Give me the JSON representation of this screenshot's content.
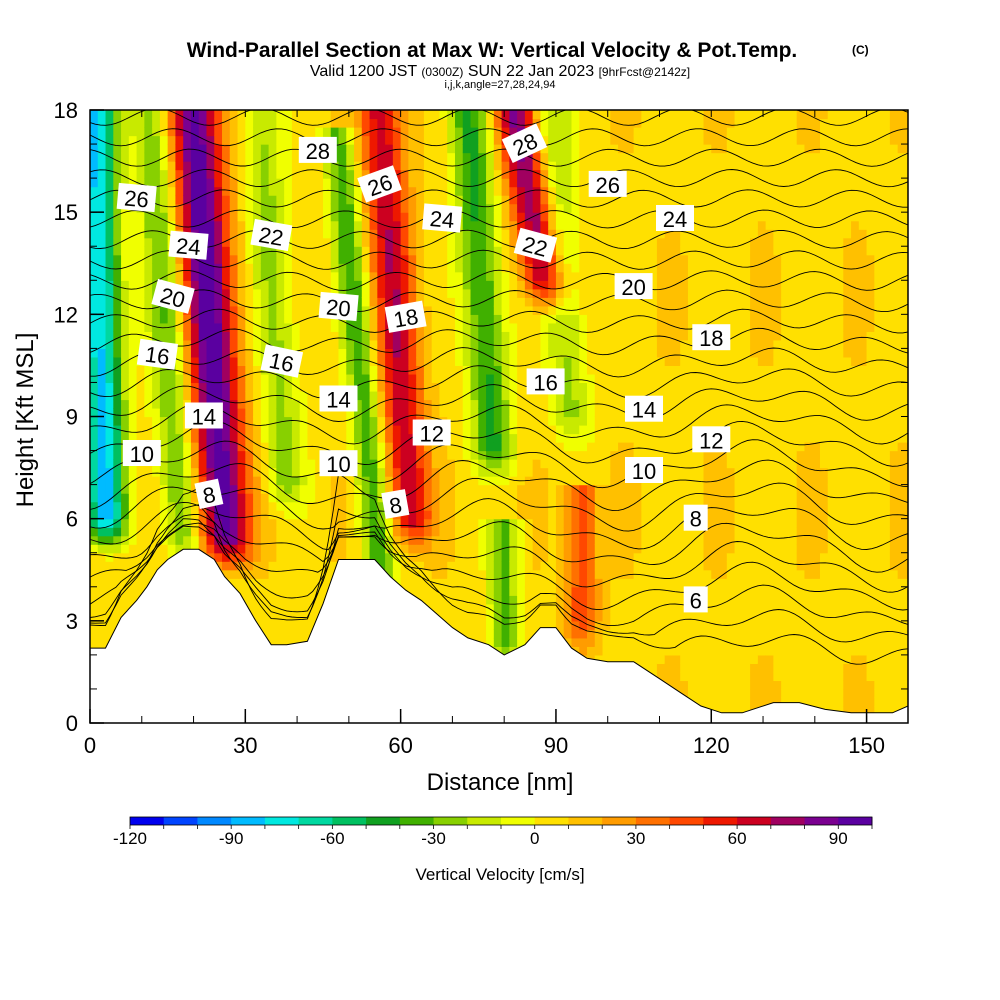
{
  "title": {
    "main": "Wind-Parallel Section at Max W: Vertical Velocity & Pot.Temp.",
    "copyright": "(C)",
    "valid_prefix": "Valid 1200 JST",
    "valid_zulu": "(0300Z)",
    "valid_date": "SUN 22 Jan 2023",
    "fcst": "[9hrFcst@2142z]",
    "params": "i,j,k,angle=27,28,24,94"
  },
  "chart_data": {
    "type": "heatmap",
    "xlabel": "Distance [nm]",
    "ylabel": "Height [Kft MSL]",
    "xlim": [
      0,
      158
    ],
    "ylim": [
      0,
      18
    ],
    "x_ticks": [
      "0",
      "30",
      "60",
      "90",
      "120",
      "150"
    ],
    "x_tick_values": [
      0,
      30,
      60,
      90,
      120,
      150
    ],
    "y_ticks": [
      "0",
      "3",
      "6",
      "9",
      "12",
      "15",
      "18"
    ],
    "y_tick_values": [
      0,
      3,
      6,
      9,
      12,
      15,
      18
    ],
    "terrain_profile": {
      "x": [
        0,
        3,
        6,
        9,
        11,
        13,
        15,
        18,
        21,
        24,
        26,
        29,
        32,
        35,
        38,
        42,
        45,
        48,
        51,
        55,
        58,
        61,
        64,
        67,
        70,
        73,
        77,
        80,
        84,
        87,
        90,
        93,
        96,
        100,
        105,
        110,
        114,
        118,
        122,
        126,
        132,
        137,
        142,
        147,
        152,
        155,
        158
      ],
      "height": [
        2.2,
        2.2,
        3.1,
        3.6,
        4.0,
        4.5,
        4.8,
        5.1,
        5.1,
        4.8,
        4.3,
        3.8,
        3.0,
        2.3,
        2.3,
        2.4,
        3.5,
        4.8,
        4.8,
        4.8,
        4.3,
        3.9,
        3.6,
        3.2,
        2.8,
        2.5,
        2.3,
        2.0,
        2.3,
        2.8,
        2.8,
        2.2,
        1.9,
        1.8,
        1.8,
        1.3,
        0.9,
        0.5,
        0.3,
        0.3,
        0.6,
        0.6,
        0.4,
        0.3,
        0.3,
        0.3,
        0.5
      ]
    },
    "vertical_velocity_features": [
      {
        "x": 3,
        "kind": "downdraft",
        "w_cms": -90,
        "bottom_kft": 6.0,
        "top_kft": 18,
        "tilt_nm": -2,
        "width_nm": 4
      },
      {
        "x": 18,
        "kind": "downdraft",
        "w_cms": -40,
        "bottom_kft": 5.5,
        "top_kft": 18,
        "tilt_nm": -6,
        "width_nm": 4
      },
      {
        "x": 26,
        "kind": "updraft",
        "w_cms": 90,
        "bottom_kft": 5.5,
        "top_kft": 18,
        "tilt_nm": -6,
        "width_nm": 5
      },
      {
        "x": 38,
        "kind": "downdraft",
        "w_cms": -30,
        "bottom_kft": 7.0,
        "top_kft": 18,
        "tilt_nm": -5,
        "width_nm": 4
      },
      {
        "x": 56,
        "kind": "downdraft",
        "w_cms": -45,
        "bottom_kft": 4.6,
        "top_kft": 17,
        "tilt_nm": -8,
        "width_nm": 3
      },
      {
        "x": 62,
        "kind": "updraft",
        "w_cms": 60,
        "bottom_kft": 6.0,
        "top_kft": 18,
        "tilt_nm": -6,
        "width_nm": 4
      },
      {
        "x": 78,
        "kind": "downdraft",
        "w_cms": -50,
        "bottom_kft": 8.0,
        "top_kft": 18,
        "tilt_nm": -5,
        "width_nm": 4
      },
      {
        "x": 88,
        "kind": "updraft",
        "w_cms": 75,
        "bottom_kft": 13.0,
        "top_kft": 18,
        "tilt_nm": -6,
        "width_nm": 4
      },
      {
        "x": 93,
        "kind": "downdraft",
        "w_cms": -30,
        "bottom_kft": 9.0,
        "top_kft": 18,
        "tilt_nm": -4,
        "width_nm": 4
      },
      {
        "x": 95,
        "kind": "updraft",
        "w_cms": 40,
        "bottom_kft": 3.0,
        "top_kft": 6.5,
        "tilt_nm": 0,
        "width_nm": 3
      },
      {
        "x": 80,
        "kind": "downdraft",
        "w_cms": -40,
        "bottom_kft": 2.3,
        "top_kft": 5.5,
        "tilt_nm": 0,
        "width_nm": 3
      }
    ],
    "theta_contours": {
      "levels": [
        6,
        8,
        10,
        12,
        14,
        16,
        18,
        20,
        22,
        24,
        26,
        28
      ],
      "interval": 1,
      "labels": [
        {
          "text": "26",
          "x": 9,
          "y": 15.4,
          "angle": 5
        },
        {
          "text": "24",
          "x": 19,
          "y": 14.0,
          "angle": 5
        },
        {
          "text": "20",
          "x": 16,
          "y": 12.5,
          "angle": 15
        },
        {
          "text": "16",
          "x": 13,
          "y": 10.8,
          "angle": 8
        },
        {
          "text": "14",
          "x": 22,
          "y": 9.0,
          "angle": 0
        },
        {
          "text": "10",
          "x": 10,
          "y": 7.9,
          "angle": 0
        },
        {
          "text": "8",
          "x": 23,
          "y": 6.7,
          "angle": -12
        },
        {
          "text": "28",
          "x": 44,
          "y": 16.8,
          "angle": 0
        },
        {
          "text": "22",
          "x": 35,
          "y": 14.3,
          "angle": 10
        },
        {
          "text": "16",
          "x": 37,
          "y": 10.6,
          "angle": 12
        },
        {
          "text": "20",
          "x": 48,
          "y": 12.2,
          "angle": 5
        },
        {
          "text": "14",
          "x": 48,
          "y": 9.5,
          "angle": 0
        },
        {
          "text": "10",
          "x": 48,
          "y": 7.6,
          "angle": 0
        },
        {
          "text": "26",
          "x": 56,
          "y": 15.8,
          "angle": -20
        },
        {
          "text": "18",
          "x": 61,
          "y": 11.9,
          "angle": -10
        },
        {
          "text": "24",
          "x": 68,
          "y": 14.8,
          "angle": 5
        },
        {
          "text": "12",
          "x": 66,
          "y": 8.5,
          "angle": 0
        },
        {
          "text": "8",
          "x": 59,
          "y": 6.4,
          "angle": -10
        },
        {
          "text": "28",
          "x": 84,
          "y": 17.0,
          "angle": -25
        },
        {
          "text": "22",
          "x": 86,
          "y": 14.0,
          "angle": 15
        },
        {
          "text": "26",
          "x": 100,
          "y": 15.8,
          "angle": 0
        },
        {
          "text": "24",
          "x": 113,
          "y": 14.8,
          "angle": 0
        },
        {
          "text": "20",
          "x": 105,
          "y": 12.8,
          "angle": 0
        },
        {
          "text": "16",
          "x": 88,
          "y": 10.0,
          "angle": 0
        },
        {
          "text": "18",
          "x": 120,
          "y": 11.3,
          "angle": 0
        },
        {
          "text": "14",
          "x": 107,
          "y": 9.2,
          "angle": 0
        },
        {
          "text": "12",
          "x": 120,
          "y": 8.3,
          "angle": 0
        },
        {
          "text": "10",
          "x": 107,
          "y": 7.4,
          "angle": 0
        },
        {
          "text": "8",
          "x": 117,
          "y": 6.0,
          "angle": 0
        },
        {
          "text": "6",
          "x": 117,
          "y": 3.6,
          "angle": 0
        }
      ]
    }
  },
  "colorbar": {
    "label": "Vertical Velocity [cm/s]",
    "range": [
      -120,
      100
    ],
    "tick_labels": [
      "-120",
      "-90",
      "-60",
      "-30",
      "0",
      "30",
      "60",
      "90"
    ],
    "tick_values": [
      -120,
      -90,
      -60,
      -30,
      0,
      30,
      60,
      90
    ],
    "colors": [
      "#0000ee",
      "#0044ff",
      "#0088ff",
      "#00bbff",
      "#00e8e0",
      "#00d8a0",
      "#00c060",
      "#10a020",
      "#40b000",
      "#88d000",
      "#c8ea00",
      "#f0ff00",
      "#ffe000",
      "#ffc000",
      "#ff9c00",
      "#ff7000",
      "#ff4800",
      "#ee1800",
      "#cc0020",
      "#a00060",
      "#7a0090",
      "#5a00a0"
    ]
  },
  "contour_color": "#000000"
}
